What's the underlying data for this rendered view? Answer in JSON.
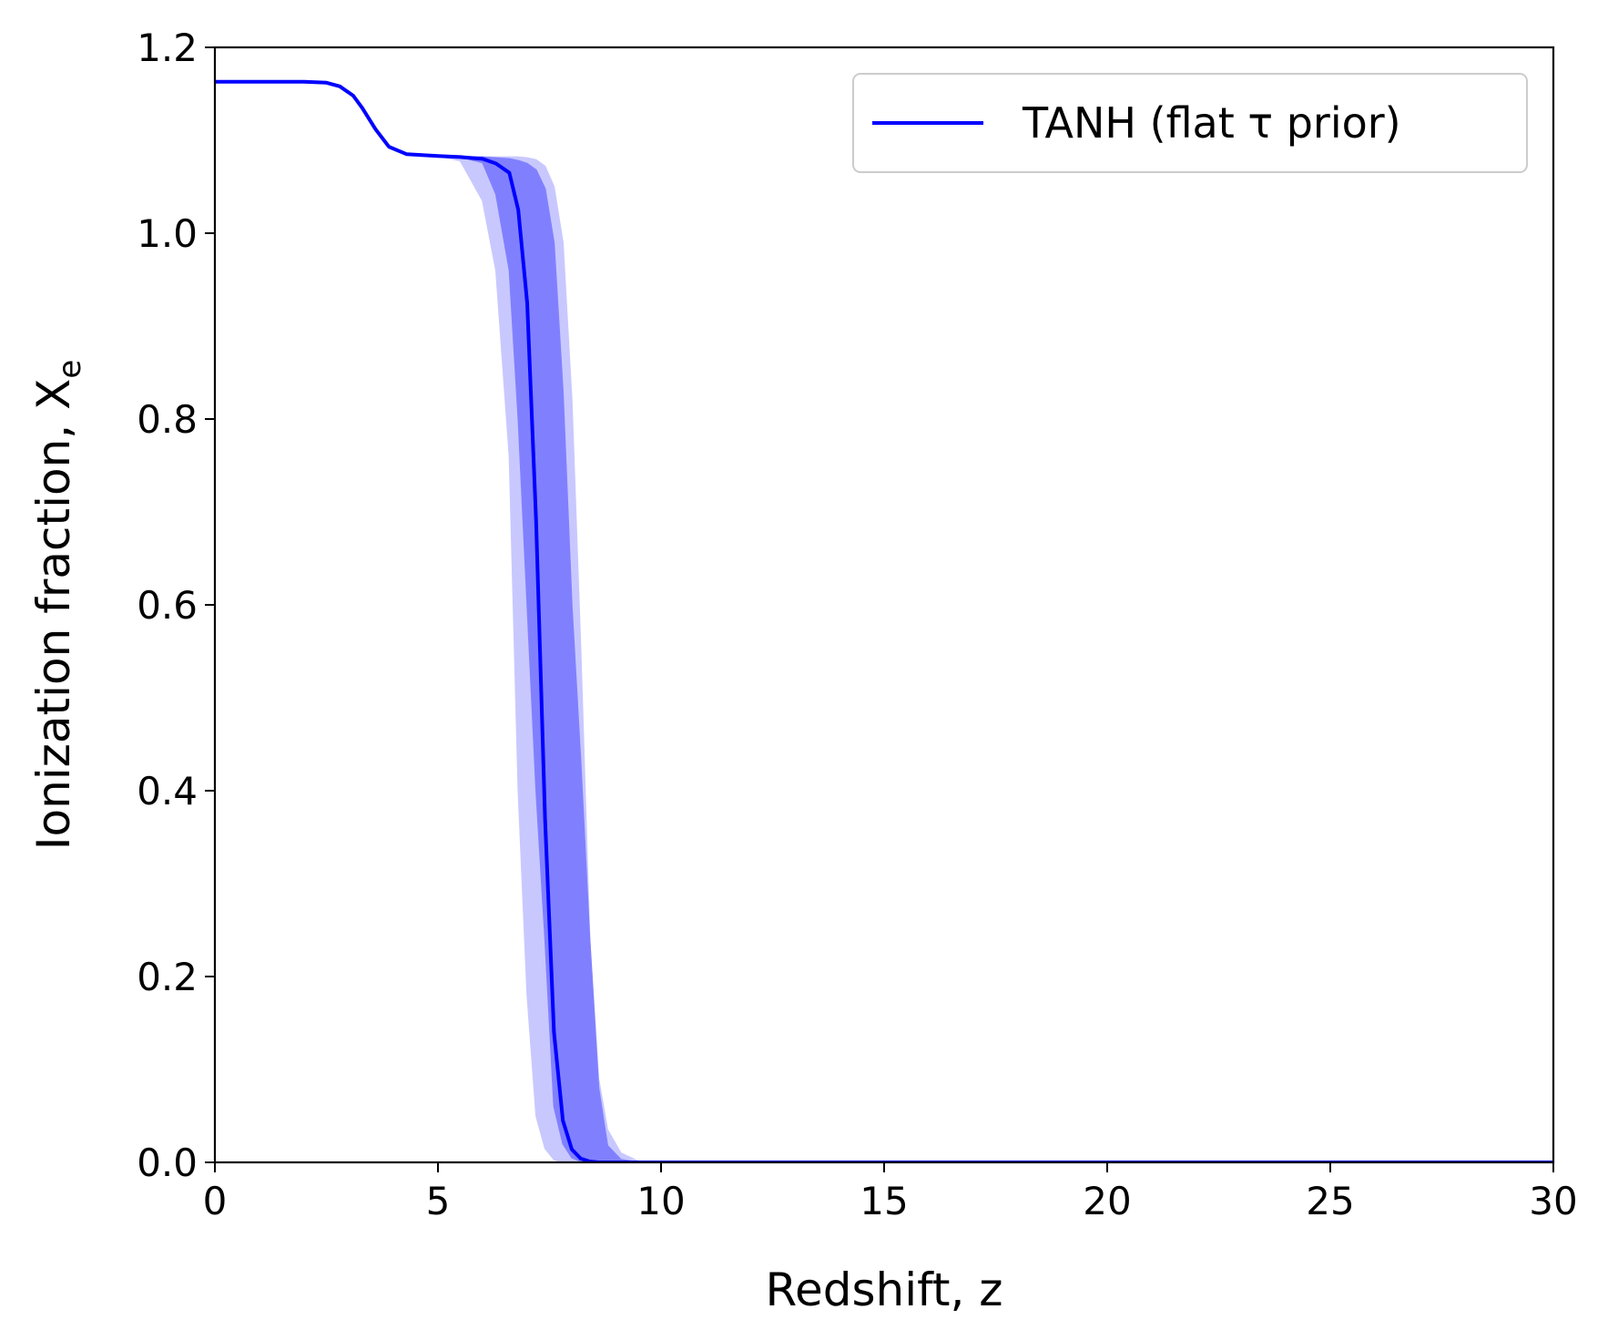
{
  "chart_data": {
    "type": "line",
    "xlabel": "Redshift, z",
    "ylabel": "Ionization fraction, X",
    "ylabel_subscript": "e",
    "xlim": [
      0,
      30
    ],
    "ylim": [
      0,
      1.2
    ],
    "xticks": [
      "0",
      "5",
      "10",
      "15",
      "20",
      "25",
      "30"
    ],
    "yticks": [
      "0.0",
      "0.2",
      "0.4",
      "0.6",
      "0.8",
      "1.0",
      "1.2"
    ],
    "grid": false,
    "legend_position": "top-right",
    "colors": {
      "line": "#0000ff",
      "band_inner": "#8080ff",
      "band_outer": "#c8c8ff"
    },
    "series": [
      {
        "name": "TANH (flat τ prior)",
        "x": [
          0,
          2.0,
          2.5,
          2.8,
          3.1,
          3.3,
          3.6,
          3.9,
          4.3,
          5.0,
          5.5,
          6.0,
          6.3,
          6.6,
          6.8,
          7.0,
          7.2,
          7.4,
          7.6,
          7.8,
          8.0,
          8.2,
          8.4,
          8.6,
          8.8,
          9.1,
          9.5,
          30
        ],
        "median": [
          1.163,
          1.163,
          1.162,
          1.158,
          1.148,
          1.135,
          1.112,
          1.093,
          1.085,
          1.083,
          1.082,
          1.08,
          1.075,
          1.065,
          1.025,
          0.925,
          0.69,
          0.37,
          0.14,
          0.045,
          0.014,
          0.004,
          0.001,
          0.0,
          0.0,
          0.0,
          0.0,
          0.0
        ],
        "band_68": {
          "lower": [
            1.163,
            1.163,
            1.162,
            1.158,
            1.148,
            1.135,
            1.112,
            1.093,
            1.085,
            1.083,
            1.082,
            1.076,
            1.042,
            0.96,
            0.8,
            0.6,
            0.4,
            0.24,
            0.06,
            0.02,
            0.005,
            0.001,
            0.0,
            0.0,
            0.0,
            0.0,
            0.0,
            0.0
          ],
          "upper": [
            1.163,
            1.163,
            1.162,
            1.158,
            1.148,
            1.135,
            1.112,
            1.093,
            1.085,
            1.083,
            1.082,
            1.082,
            1.081,
            1.08,
            1.078,
            1.075,
            1.068,
            1.048,
            0.99,
            0.83,
            0.6,
            0.43,
            0.24,
            0.08,
            0.018,
            0.003,
            0.0,
            0.0
          ]
        },
        "band_95": {
          "lower": [
            1.163,
            1.163,
            1.162,
            1.158,
            1.148,
            1.135,
            1.112,
            1.093,
            1.085,
            1.083,
            1.078,
            1.035,
            0.96,
            0.76,
            0.4,
            0.18,
            0.05,
            0.015,
            0.003,
            0.0,
            0.0,
            0.0,
            0.0,
            0.0,
            0.0,
            0.0,
            0.0,
            0.0
          ],
          "upper": [
            1.163,
            1.163,
            1.162,
            1.158,
            1.148,
            1.135,
            1.112,
            1.093,
            1.085,
            1.083,
            1.082,
            1.082,
            1.082,
            1.082,
            1.082,
            1.081,
            1.079,
            1.072,
            1.05,
            0.99,
            0.82,
            0.55,
            0.24,
            0.09,
            0.035,
            0.01,
            0.001,
            0.0
          ]
        }
      }
    ]
  }
}
